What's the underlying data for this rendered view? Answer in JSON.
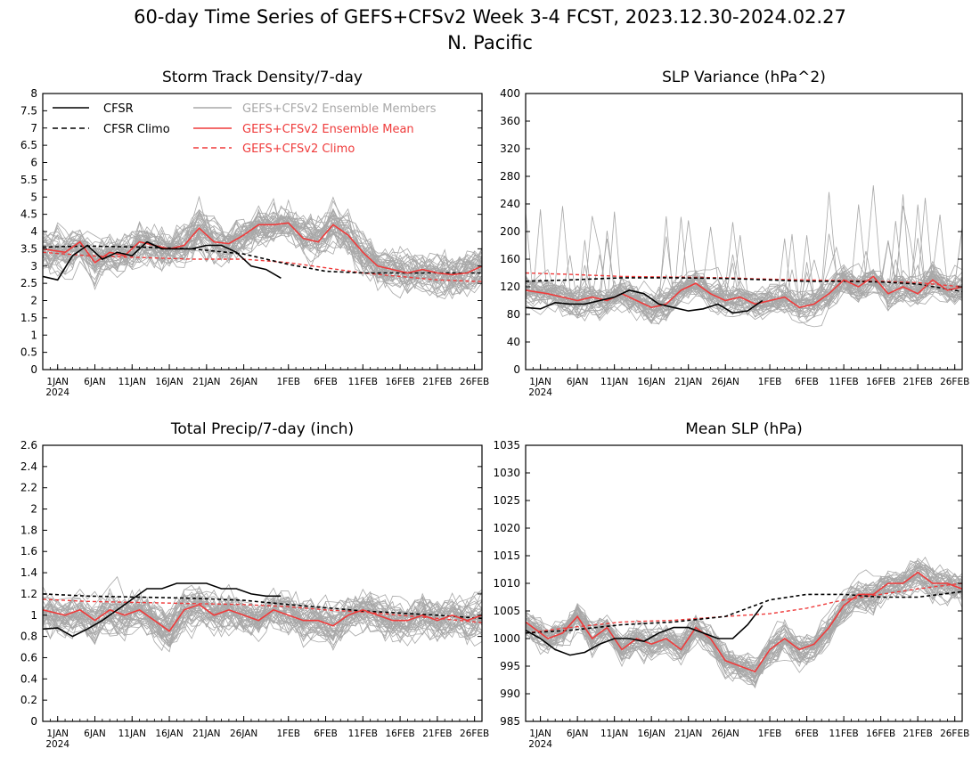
{
  "figure": {
    "title": "60-day Time Series of GEFS+CFSv2 Week 3-4 FCST, 2023.12.30-2024.02.27",
    "subtitle": "N. Pacific"
  },
  "x_axis": {
    "labels": [
      "1JAN",
      "6JAN",
      "11JAN",
      "16JAN",
      "21JAN",
      "26JAN",
      "1FEB",
      "6FEB",
      "11FEB",
      "16FEB",
      "21FEB",
      "26FEB"
    ],
    "label_dates": [
      "2024-01-01",
      "2024-01-06",
      "2024-01-11",
      "2024-01-16",
      "2024-01-21",
      "2024-01-26",
      "2024-02-01",
      "2024-02-06",
      "2024-02-11",
      "2024-02-16",
      "2024-02-21",
      "2024-02-26"
    ],
    "year_label": "2024",
    "start_date": "2023-12-30",
    "end_date": "2024-02-27"
  },
  "legend": {
    "cfsr": "CFSR",
    "cfsr_climo": "CFSR Climo",
    "members": "GEFS+CFSv2 Ensemble Members",
    "ens_mean": "GEFS+CFSv2 Ensemble Mean",
    "gefs_climo": "GEFS+CFSv2 Climo"
  },
  "colors": {
    "cfsr": "#000000",
    "cfsr_climo": "#000000",
    "members": "#a8a8a8",
    "ens_mean": "#ef3b3b",
    "gefs_climo": "#ef3b3b"
  },
  "chart_data": [
    {
      "type": "line",
      "title": "Storm Track Density/7-day",
      "ylim": [
        0,
        8
      ],
      "yticks": [
        "0",
        "0.5",
        "1",
        "1.5",
        "2",
        "2.5",
        "3",
        "3.5",
        "4",
        "4.5",
        "5",
        "5.5",
        "6",
        "6.5",
        "7",
        "7.5",
        "8"
      ],
      "member_count": 40,
      "series": [
        {
          "name": "CFSR",
          "x": [
            "2023-12-30",
            "2024-01-01",
            "2024-01-03",
            "2024-01-05",
            "2024-01-07",
            "2024-01-09",
            "2024-01-11",
            "2024-01-13",
            "2024-01-15",
            "2024-01-17",
            "2024-01-19",
            "2024-01-21",
            "2024-01-23",
            "2024-01-25",
            "2024-01-27",
            "2024-01-29",
            "2024-01-31"
          ],
          "y": [
            2.7,
            2.6,
            3.3,
            3.6,
            3.2,
            3.4,
            3.3,
            3.7,
            3.5,
            3.5,
            3.5,
            3.6,
            3.6,
            3.4,
            3.0,
            2.9,
            2.65
          ]
        },
        {
          "name": "CFSR Climo",
          "x": [
            "2023-12-30",
            "2024-01-05",
            "2024-01-12",
            "2024-01-19",
            "2024-01-26",
            "2024-02-01",
            "2024-02-06",
            "2024-02-11",
            "2024-02-16",
            "2024-02-21",
            "2024-02-27"
          ],
          "y": [
            3.55,
            3.58,
            3.55,
            3.5,
            3.35,
            3.05,
            2.85,
            2.8,
            2.8,
            2.8,
            2.8
          ]
        },
        {
          "name": "GEFS+CFSv2 Ensemble Mean",
          "x": [
            "2023-12-30",
            "2024-01-02",
            "2024-01-04",
            "2024-01-06",
            "2024-01-08",
            "2024-01-10",
            "2024-01-12",
            "2024-01-14",
            "2024-01-16",
            "2024-01-18",
            "2024-01-20",
            "2024-01-22",
            "2024-01-24",
            "2024-01-26",
            "2024-01-28",
            "2024-01-30",
            "2024-02-01",
            "2024-02-03",
            "2024-02-05",
            "2024-02-07",
            "2024-02-09",
            "2024-02-11",
            "2024-02-13",
            "2024-02-15",
            "2024-02-17",
            "2024-02-19",
            "2024-02-21",
            "2024-02-23",
            "2024-02-25",
            "2024-02-27"
          ],
          "y": [
            3.5,
            3.4,
            3.7,
            3.1,
            3.4,
            3.3,
            3.7,
            3.6,
            3.5,
            3.6,
            4.1,
            3.7,
            3.65,
            3.9,
            4.2,
            4.2,
            4.25,
            3.8,
            3.7,
            4.2,
            3.9,
            3.4,
            3.0,
            2.9,
            2.8,
            2.9,
            2.8,
            2.75,
            2.8,
            3.0
          ]
        },
        {
          "name": "GEFS+CFSv2 Climo",
          "x": [
            "2023-12-30",
            "2024-01-05",
            "2024-01-12",
            "2024-01-19",
            "2024-01-26",
            "2024-02-01",
            "2024-02-06",
            "2024-02-11",
            "2024-02-16",
            "2024-02-21",
            "2024-02-27"
          ],
          "y": [
            3.4,
            3.3,
            3.25,
            3.2,
            3.2,
            3.1,
            2.95,
            2.8,
            2.7,
            2.6,
            2.55
          ]
        }
      ]
    },
    {
      "type": "line",
      "title": "SLP Variance (hPa^2)",
      "ylim": [
        0,
        400
      ],
      "yticks": [
        "0",
        "40",
        "80",
        "120",
        "160",
        "200",
        "240",
        "280",
        "320",
        "360",
        "400"
      ],
      "member_count": 40,
      "series": [
        {
          "name": "CFSR",
          "x": [
            "2023-12-30",
            "2024-01-01",
            "2024-01-03",
            "2024-01-05",
            "2024-01-07",
            "2024-01-09",
            "2024-01-11",
            "2024-01-13",
            "2024-01-15",
            "2024-01-17",
            "2024-01-19",
            "2024-01-21",
            "2024-01-23",
            "2024-01-25",
            "2024-01-27",
            "2024-01-29",
            "2024-01-31"
          ],
          "y": [
            90,
            88,
            97,
            95,
            95,
            100,
            105,
            115,
            110,
            95,
            90,
            85,
            88,
            95,
            82,
            85,
            100
          ]
        },
        {
          "name": "CFSR Climo",
          "x": [
            "2023-12-30",
            "2024-01-05",
            "2024-01-12",
            "2024-01-19",
            "2024-01-26",
            "2024-02-01",
            "2024-02-06",
            "2024-02-11",
            "2024-02-16",
            "2024-02-21",
            "2024-02-27"
          ],
          "y": [
            128,
            130,
            133,
            133,
            132,
            130,
            128,
            128,
            127,
            124,
            113
          ]
        },
        {
          "name": "GEFS+CFSv2 Ensemble Mean",
          "x": [
            "2023-12-30",
            "2024-01-02",
            "2024-01-04",
            "2024-01-06",
            "2024-01-08",
            "2024-01-10",
            "2024-01-12",
            "2024-01-14",
            "2024-01-16",
            "2024-01-18",
            "2024-01-20",
            "2024-01-22",
            "2024-01-24",
            "2024-01-26",
            "2024-01-28",
            "2024-01-30",
            "2024-02-01",
            "2024-02-03",
            "2024-02-05",
            "2024-02-07",
            "2024-02-09",
            "2024-02-11",
            "2024-02-13",
            "2024-02-15",
            "2024-02-17",
            "2024-02-19",
            "2024-02-21",
            "2024-02-23",
            "2024-02-25",
            "2024-02-27"
          ],
          "y": [
            115,
            110,
            105,
            100,
            105,
            100,
            110,
            100,
            90,
            95,
            115,
            125,
            110,
            100,
            105,
            95,
            100,
            105,
            90,
            95,
            110,
            130,
            120,
            135,
            110,
            120,
            110,
            130,
            115,
            120
          ]
        },
        {
          "name": "GEFS+CFSv2 Climo",
          "x": [
            "2023-12-30",
            "2024-01-05",
            "2024-01-12",
            "2024-01-19",
            "2024-01-26",
            "2024-02-01",
            "2024-02-06",
            "2024-02-11",
            "2024-02-16",
            "2024-02-21",
            "2024-02-27"
          ],
          "y": [
            140,
            138,
            135,
            134,
            133,
            131,
            130,
            129,
            128,
            126,
            120
          ]
        }
      ]
    },
    {
      "type": "line",
      "title": "Total Precip/7-day (inch)",
      "ylim": [
        0,
        2.6
      ],
      "yticks": [
        "0",
        "0.2",
        "0.4",
        "0.6",
        "0.8",
        "1",
        "1.2",
        "1.4",
        "1.6",
        "1.8",
        "2",
        "2.2",
        "2.4",
        "2.6"
      ],
      "member_count": 40,
      "series": [
        {
          "name": "CFSR",
          "x": [
            "2023-12-30",
            "2024-01-01",
            "2024-01-03",
            "2024-01-05",
            "2024-01-07",
            "2024-01-09",
            "2024-01-11",
            "2024-01-13",
            "2024-01-15",
            "2024-01-17",
            "2024-01-19",
            "2024-01-21",
            "2024-01-23",
            "2024-01-25",
            "2024-01-27",
            "2024-01-29",
            "2024-01-31"
          ],
          "y": [
            0.87,
            0.88,
            0.8,
            0.87,
            0.95,
            1.05,
            1.15,
            1.25,
            1.25,
            1.3,
            1.3,
            1.3,
            1.25,
            1.25,
            1.2,
            1.18,
            1.18
          ]
        },
        {
          "name": "CFSR Climo",
          "x": [
            "2023-12-30",
            "2024-01-05",
            "2024-01-12",
            "2024-01-19",
            "2024-01-26",
            "2024-02-01",
            "2024-02-06",
            "2024-02-11",
            "2024-02-16",
            "2024-02-21",
            "2024-02-27"
          ],
          "y": [
            1.2,
            1.18,
            1.17,
            1.16,
            1.14,
            1.1,
            1.07,
            1.04,
            1.02,
            1.0,
            0.97
          ]
        },
        {
          "name": "GEFS+CFSv2 Ensemble Mean",
          "x": [
            "2023-12-30",
            "2024-01-02",
            "2024-01-04",
            "2024-01-06",
            "2024-01-08",
            "2024-01-10",
            "2024-01-12",
            "2024-01-14",
            "2024-01-16",
            "2024-01-18",
            "2024-01-20",
            "2024-01-22",
            "2024-01-24",
            "2024-01-26",
            "2024-01-28",
            "2024-01-30",
            "2024-02-01",
            "2024-02-03",
            "2024-02-05",
            "2024-02-07",
            "2024-02-09",
            "2024-02-11",
            "2024-02-13",
            "2024-02-15",
            "2024-02-17",
            "2024-02-19",
            "2024-02-21",
            "2024-02-23",
            "2024-02-25",
            "2024-02-27"
          ],
          "y": [
            1.05,
            1.0,
            1.05,
            0.95,
            1.05,
            1.0,
            1.05,
            0.95,
            0.85,
            1.05,
            1.1,
            1.0,
            1.05,
            1.0,
            0.95,
            1.05,
            1.0,
            0.95,
            0.95,
            0.9,
            1.0,
            1.05,
            1.0,
            0.95,
            0.95,
            1.0,
            0.95,
            1.0,
            0.95,
            1.0
          ]
        },
        {
          "name": "GEFS+CFSv2 Climo",
          "x": [
            "2023-12-30",
            "2024-01-05",
            "2024-01-12",
            "2024-01-19",
            "2024-01-26",
            "2024-02-01",
            "2024-02-06",
            "2024-02-11",
            "2024-02-16",
            "2024-02-21",
            "2024-02-27"
          ],
          "y": [
            1.15,
            1.13,
            1.12,
            1.11,
            1.1,
            1.08,
            1.05,
            1.03,
            1.0,
            0.97,
            0.93
          ]
        }
      ]
    },
    {
      "type": "line",
      "title": "Mean SLP (hPa)",
      "ylim": [
        985,
        1035
      ],
      "yticks": [
        "985",
        "990",
        "995",
        "1000",
        "1005",
        "1010",
        "1015",
        "1020",
        "1025",
        "1030",
        "1035"
      ],
      "member_count": 40,
      "series": [
        {
          "name": "CFSR",
          "x": [
            "2023-12-30",
            "2024-01-01",
            "2024-01-03",
            "2024-01-05",
            "2024-01-07",
            "2024-01-09",
            "2024-01-11",
            "2024-01-13",
            "2024-01-15",
            "2024-01-17",
            "2024-01-19",
            "2024-01-21",
            "2024-01-23",
            "2024-01-25",
            "2024-01-27",
            "2024-01-29",
            "2024-01-31"
          ],
          "y": [
            1001.5,
            1000,
            998,
            997,
            997.5,
            999,
            1000,
            1000,
            999.5,
            1001,
            1002,
            1002,
            1001,
            1000,
            1000,
            1002.5,
            1006
          ]
        },
        {
          "name": "CFSR Climo",
          "x": [
            "2023-12-30",
            "2024-01-05",
            "2024-01-12",
            "2024-01-19",
            "2024-01-26",
            "2024-02-01",
            "2024-02-06",
            "2024-02-11",
            "2024-02-16",
            "2024-02-21",
            "2024-02-27"
          ],
          "y": [
            1001,
            1001.5,
            1002.5,
            1003,
            1004,
            1007,
            1008,
            1008,
            1007.5,
            1007.5,
            1008.5
          ]
        },
        {
          "name": "GEFS+CFSv2 Ensemble Mean",
          "x": [
            "2023-12-30",
            "2024-01-02",
            "2024-01-04",
            "2024-01-06",
            "2024-01-08",
            "2024-01-10",
            "2024-01-12",
            "2024-01-14",
            "2024-01-16",
            "2024-01-18",
            "2024-01-20",
            "2024-01-22",
            "2024-01-24",
            "2024-01-26",
            "2024-01-28",
            "2024-01-30",
            "2024-02-01",
            "2024-02-03",
            "2024-02-05",
            "2024-02-07",
            "2024-02-09",
            "2024-02-11",
            "2024-02-13",
            "2024-02-15",
            "2024-02-17",
            "2024-02-19",
            "2024-02-21",
            "2024-02-23",
            "2024-02-25",
            "2024-02-27"
          ],
          "y": [
            1003,
            1000,
            1001,
            1004,
            1000,
            1002,
            998,
            1000,
            999,
            1000,
            998,
            1002,
            1000,
            996,
            995,
            994,
            998,
            1000,
            998,
            999,
            1002,
            1006,
            1008,
            1008,
            1010,
            1010,
            1012,
            1010,
            1010,
            1009
          ]
        },
        {
          "name": "GEFS+CFSv2 Climo",
          "x": [
            "2023-12-30",
            "2024-01-05",
            "2024-01-12",
            "2024-01-19",
            "2024-01-26",
            "2024-02-01",
            "2024-02-06",
            "2024-02-11",
            "2024-02-16",
            "2024-02-21",
            "2024-02-27"
          ],
          "y": [
            1001,
            1002,
            1003,
            1003.3,
            1004,
            1004.5,
            1005.5,
            1007,
            1008,
            1009,
            1010
          ]
        }
      ]
    }
  ]
}
